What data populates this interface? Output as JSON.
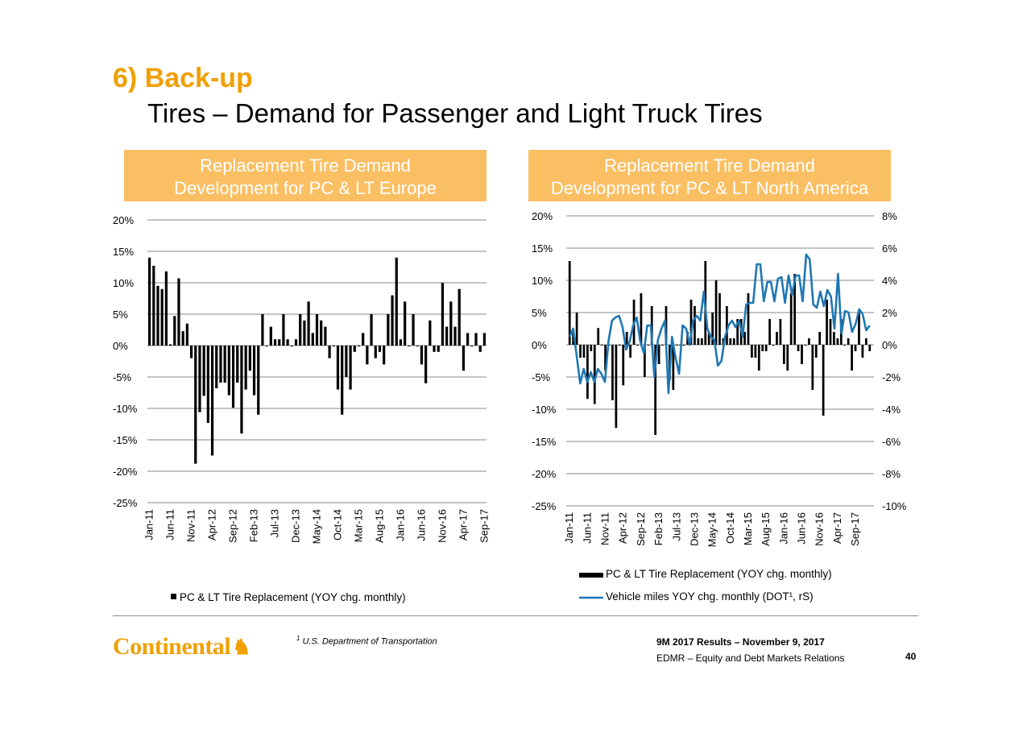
{
  "header": {
    "section": "6) Back-up",
    "title": "Tires – Demand for Passenger and Light Truck Tires"
  },
  "panels": {
    "left": {
      "line1": "Replacement Tire Demand",
      "line2": "Development for PC & LT Europe"
    },
    "right": {
      "line1": "Replacement Tire Demand",
      "line2": "Development for PC & LT North America"
    }
  },
  "colors": {
    "accent": "#f0a000",
    "header_bg": "#fbbf63",
    "bar": "#000000",
    "line": "#1f77b4",
    "grid": "#808080"
  },
  "chart_data": [
    {
      "type": "bar",
      "title": "Replacement Tire Demand Development for PC & LT Europe",
      "ylim": [
        -25,
        20
      ],
      "yticks": [
        "-25%",
        "-20%",
        "-15%",
        "-10%",
        "-5%",
        "0%",
        "5%",
        "10%",
        "15%",
        "20%"
      ],
      "xticklabels": [
        "Jan-11",
        "Jun-11",
        "Nov-11",
        "Apr-12",
        "Sep-12",
        "Feb-13",
        "Jul-13",
        "Dec-13",
        "May-14",
        "Oct-14",
        "Mar-15",
        "Aug-15",
        "Jan-16",
        "Jun-16",
        "Nov-16",
        "Apr-17",
        "Sep-17"
      ],
      "legend": [
        "PC & LT Tire Replacement (YOY chg. monthly)"
      ],
      "series": [
        {
          "name": "PC & LT Tire Replacement (YOY chg. monthly)",
          "unit": "%",
          "values": [
            14,
            12.7,
            9.5,
            9,
            11.8,
            0.2,
            4.7,
            10.7,
            2.3,
            3.5,
            -2,
            -18.8,
            -10.6,
            -8,
            -12.3,
            -17.5,
            -6.8,
            -5.9,
            -5.9,
            -7.9,
            -9.9,
            -5.9,
            -14,
            -7,
            -4,
            -7.9,
            -11,
            5,
            0,
            3,
            1,
            1,
            5,
            1,
            0,
            1,
            5,
            4,
            7,
            2,
            5,
            4,
            3,
            -2,
            0,
            -7,
            -11,
            -5,
            -7,
            -1,
            0,
            2,
            -3,
            5,
            -2,
            -1,
            -3,
            5,
            8,
            14,
            1,
            7,
            0,
            5,
            0,
            -3,
            -6,
            4,
            -1,
            -1,
            10,
            3,
            7,
            3,
            9,
            -4,
            2,
            0,
            2,
            -1,
            2
          ]
        }
      ]
    },
    {
      "type": "bar",
      "title": "Replacement Tire Demand Development for PC & LT North America",
      "ylim": [
        -25,
        20
      ],
      "yticks": [
        "-25%",
        "-20%",
        "-15%",
        "-10%",
        "-5%",
        "0%",
        "5%",
        "10%",
        "15%",
        "20%"
      ],
      "y2lim": [
        -10,
        8
      ],
      "y2ticks": [
        "-10%",
        "-8%",
        "-6%",
        "-4%",
        "-2%",
        "0%",
        "2%",
        "4%",
        "6%",
        "8%"
      ],
      "xticklabels": [
        "Jan-11",
        "Jun-11",
        "Nov-11",
        "Apr-12",
        "Sep-12",
        "Feb-13",
        "Jul-13",
        "Dec-13",
        "May-14",
        "Oct-14",
        "Mar-15",
        "Aug-15",
        "Jan-16",
        "Jun-16",
        "Nov-16",
        "Apr-17",
        "Sep-17"
      ],
      "legend": [
        "PC & LT Tire Replacement (YOY chg. monthly)",
        "Vehicle miles YOY chg. monthly (DOT¹, rS)"
      ],
      "series": [
        {
          "name": "PC & LT Tire Replacement (YOY chg. monthly)",
          "unit": "%",
          "axis": "left",
          "values": [
            13,
            2,
            5,
            -2,
            -2,
            -8.4,
            -1,
            -9.2,
            2.6,
            0,
            -4,
            0,
            -8.6,
            -12.9,
            0,
            -6.3,
            2,
            -2,
            7,
            0,
            8,
            -5,
            0,
            6,
            -14,
            -3,
            0,
            6,
            -5.5,
            -7,
            0,
            0,
            0,
            2,
            7,
            6,
            1,
            1,
            13,
            2,
            5,
            10,
            8,
            1,
            6,
            1,
            1,
            4,
            4,
            2,
            8,
            -2,
            -2,
            -4,
            -1,
            -1,
            4,
            0,
            2,
            4,
            -3,
            -4,
            8,
            11,
            -1,
            -3,
            0,
            1,
            -7,
            -2,
            2,
            -11,
            7,
            4,
            2,
            1,
            4,
            0,
            1,
            -4,
            -1,
            5,
            -2,
            1,
            -1
          ]
        },
        {
          "name": "Vehicle miles YOY chg. monthly (DOT¹, rS)",
          "unit": "%",
          "axis": "right",
          "values": [
            0.5,
            1,
            -0.7,
            -2.4,
            -1.5,
            -2.3,
            -1.7,
            -2.3,
            -1.5,
            -1.8,
            -2.3,
            0.2,
            1.5,
            1.7,
            1.8,
            1.1,
            -0.3,
            0.2,
            1.2,
            1.7,
            0.2,
            -0.5,
            1.2,
            1.2,
            -2,
            0.3,
            1,
            1.5,
            -3,
            0.5,
            -0.8,
            -1.8,
            1.2,
            1,
            0,
            1.5,
            1.8,
            1.5,
            3.3,
            1,
            0.5,
            0.3,
            -1.3,
            -1,
            0.5,
            1.2,
            1.5,
            1.1,
            1.5,
            0.5,
            2.5,
            2.6,
            2.6,
            5,
            5,
            2.7,
            3.9,
            3.9,
            2.7,
            4.1,
            4.2,
            2.6,
            4.3,
            3.1,
            4.3,
            4.3,
            2.7,
            5.6,
            5.3,
            2.5,
            2.3,
            3.3,
            2.4,
            3.4,
            3,
            1,
            4.4,
            0.7,
            2.1,
            2,
            0.8,
            1.3,
            2.2,
            1.9,
            0.9,
            1.2
          ]
        }
      ]
    }
  ],
  "footer": {
    "footnote_mark": "1",
    "footnote": "U.S. Department of Transportation",
    "results": "9M 2017 Results – November 9, 2017",
    "dept": "EDMR – Equity and Debt Markets Relations",
    "page": "40",
    "logo": "Continental",
    "logo_icon": "horse-icon"
  }
}
